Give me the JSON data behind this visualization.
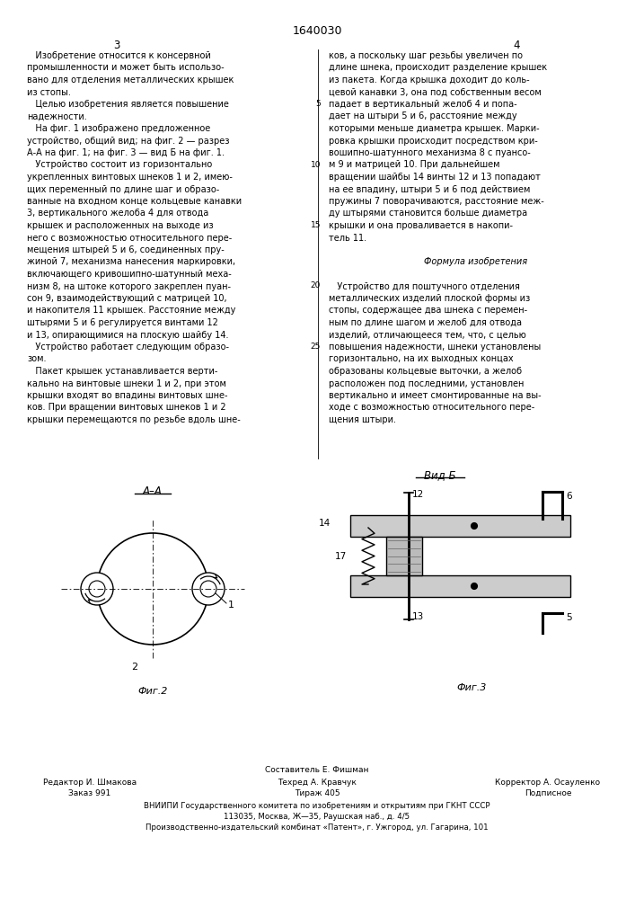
{
  "patent_number": "1640030",
  "page_left": "3",
  "page_right": "4",
  "background": "#ffffff",
  "left_column_text": [
    "   Изобретение относится к консервной",
    "промышленности и может быть использо-",
    "вано для отделения металлических крышек",
    "из стопы.",
    "   Целью изобретения является повышение",
    "надежности.",
    "   На фиг. 1 изображено предложенное",
    "устройство, общий вид; на фиг. 2 — разрез",
    "А-А на фиг. 1; на фиг. 3 — вид Б на фиг. 1.",
    "   Устройство состоит из горизонтально",
    "укрепленных винтовых шнеков 1 и 2, имею-",
    "щих переменный по длине шаг и образо-",
    "ванные на входном конце кольцевые канавки",
    "3, вертикального желоба 4 для отвода",
    "крышек и расположенных на выходе из",
    "него с возможностью относительного пере-",
    "мещения штырей 5 и 6, соединенных пру-",
    "жиной 7, механизма нанесения маркировки,",
    "включающего кривошипно-шатунный меха-",
    "низм 8, на штоке которого закреплен пуан-",
    "сон 9, взаимодействующий с матрицей 10,",
    "и накопителя 11 крышек. Расстояние между",
    "штырями 5 и 6 регулируется винтами 12",
    "и 13, опирающимися на плоскую шайбу 14.",
    "   Устройство работает следующим образо-",
    "зом.",
    "   Пакет крышек устанавливается верти-",
    "кально на винтовые шнеки 1 и 2, при этом",
    "крышки входят во впадины винтовых шне-",
    "ков. При вращении винтовых шнеков 1 и 2",
    "крышки перемещаются по резьбе вдоль шне-"
  ],
  "right_column_text": [
    "ков, а поскольку шаг резьбы увеличен по",
    "длине шнека, происходит разделение крышек",
    "из пакета. Когда крышка доходит до коль-",
    "цевой канавки 3, она под собственным весом",
    "падает в вертикальный желоб 4 и попа-",
    "дает на штыри 5 и 6, расстояние между",
    "которыми меньше диаметра крышек. Марки-",
    "ровка крышки происходит посредством кри-",
    "вошипно-шатунного механизма 8 с пуансо-",
    "м 9 и матрицей 10. При дальнейшем",
    "вращении шайбы 14 винты 12 и 13 попадают",
    "на ее впадину, штыри 5 и 6 под действием",
    "пружины 7 поворачиваются, расстояние меж-",
    "ду штырями становится больше диаметра",
    "крышки и она проваливается в накопи-",
    "тель 11.",
    "",
    "Формула изобретения",
    "",
    "   Устройство для поштучного отделения",
    "металлических изделий плоской формы из",
    "стопы, содержащее два шнека с перемен-",
    "ным по длине шагом и желоб для отвода",
    "изделий, отличающееся тем, что, с целью",
    "повышения надежности, шнеки установлены",
    "горизонтально, на их выходных концах",
    "образованы кольцевые выточки, а желоб",
    "расположен под последними, установлен",
    "вертикально и имеет смонтированные на вы-",
    "ходе с возможностью относительного пере-",
    "щения штыри."
  ],
  "footer_left": [
    "Редактор И. Шмакова",
    "Заказ 991"
  ],
  "footer_center_top": "Составитель Е. Фишман",
  "footer_center": [
    "Техред А. Кравчук",
    "Тираж 405"
  ],
  "footer_right": [
    "Корректор А. Осауленко",
    "Подписное"
  ],
  "footer_bottom": [
    "ВНИИПИ Государственного комитета по изобретениям и открытиям при ГКНТ СССР",
    "113035, Москва, Ж—35, Раушская наб., д. 4/5",
    "Производственно-издательский комбинат «Патент», г. Ужгород, ул. Гагарина, 101"
  ],
  "fig2_label": "Фиг.2",
  "fig3_label": "Фиг.3",
  "aa_label": "A–A",
  "vidb_label": "Вид Б"
}
